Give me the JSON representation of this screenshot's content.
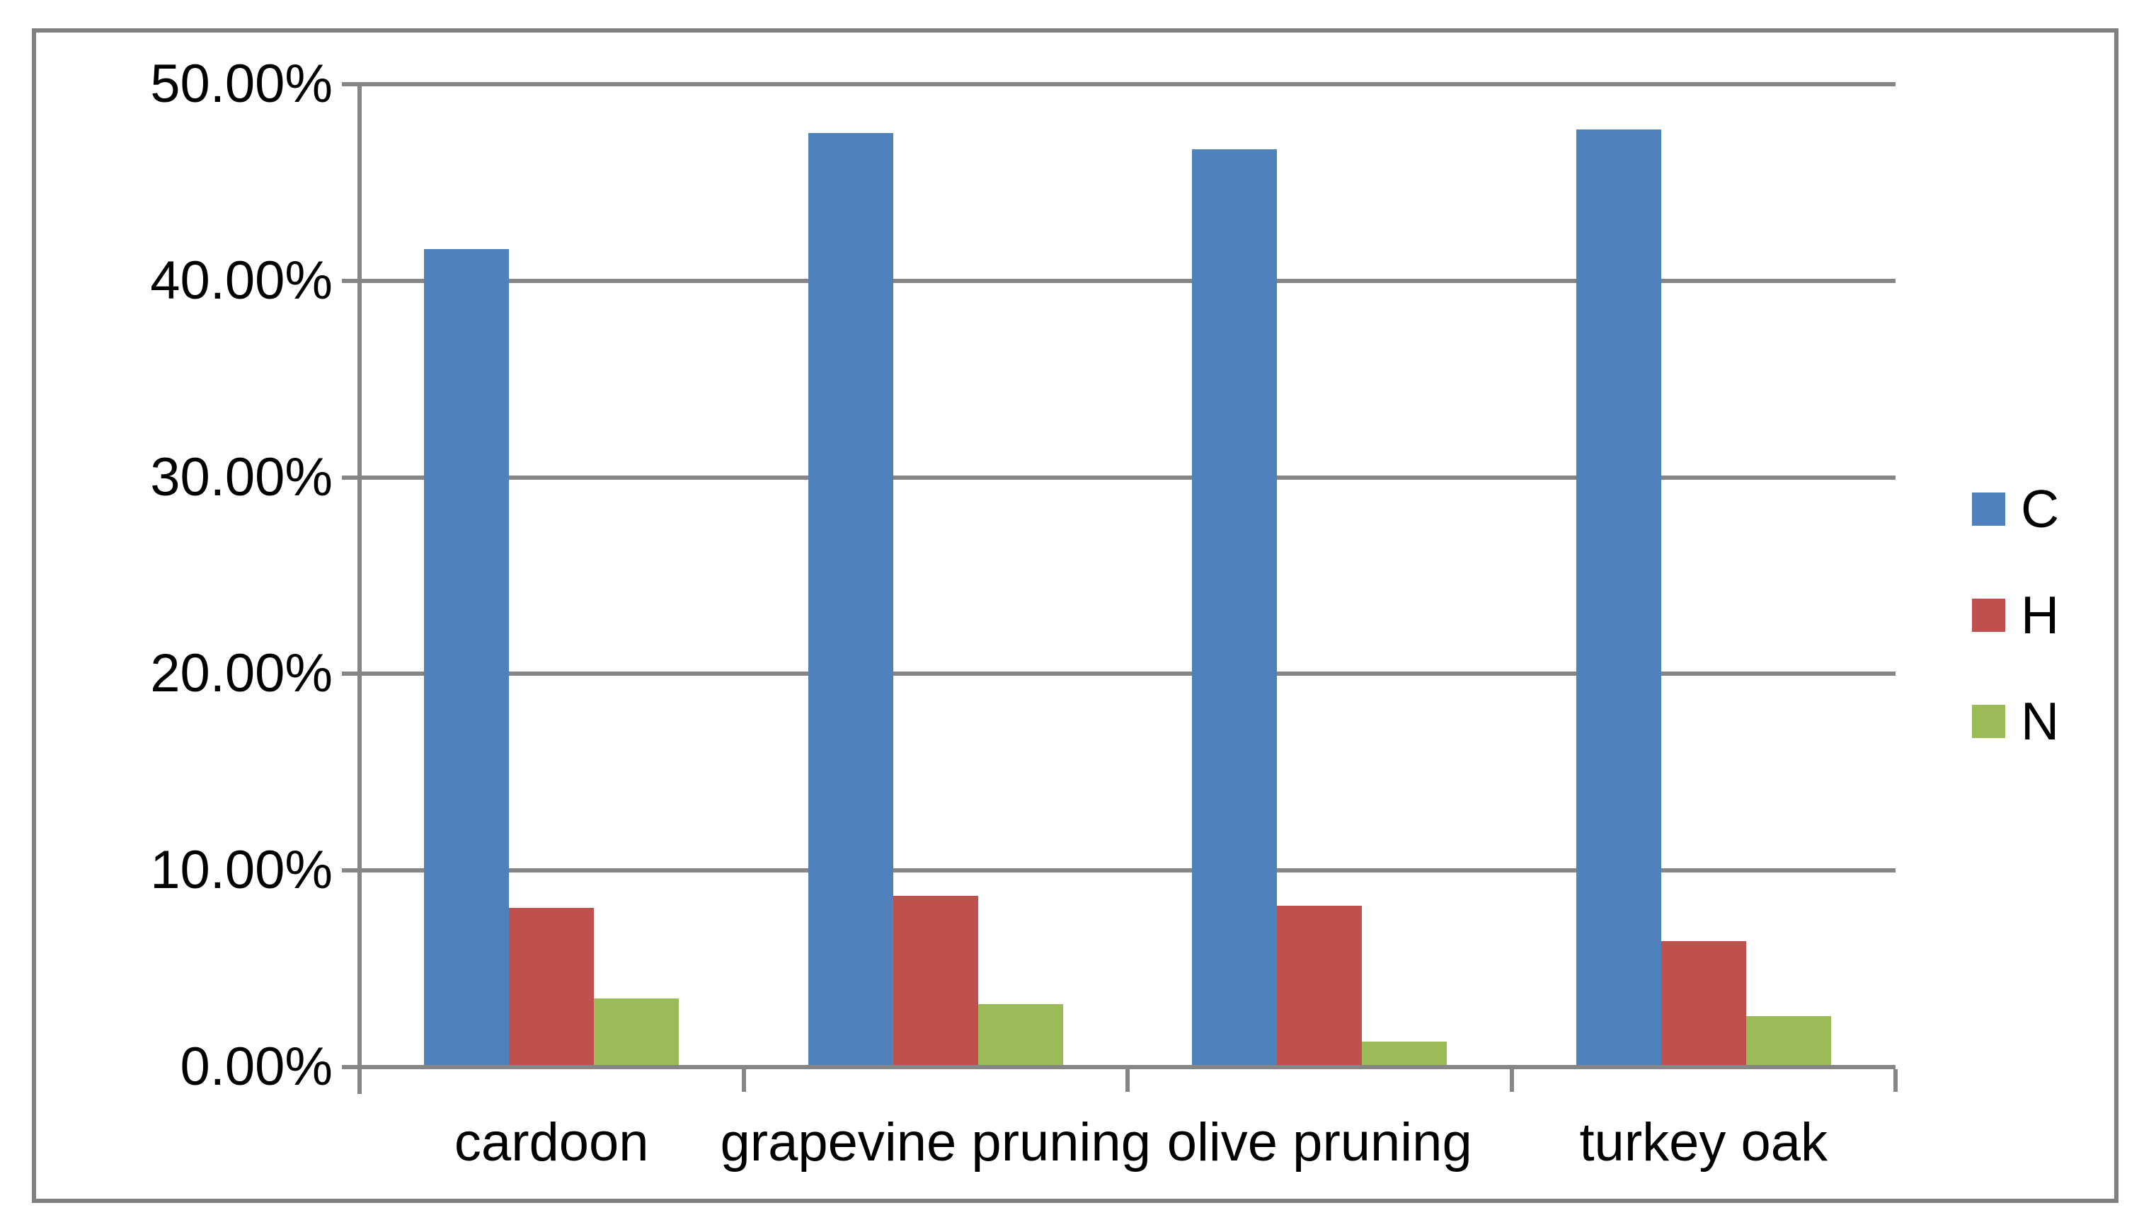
{
  "chart_data": {
    "type": "bar",
    "title": "",
    "xlabel": "",
    "ylabel": "",
    "categories": [
      "cardoon",
      "grapevine pruning",
      "olive pruning",
      "turkey oak"
    ],
    "series": [
      {
        "name": "C",
        "color": "#4F81BD",
        "values": [
          41.6,
          47.5,
          46.7,
          47.7
        ]
      },
      {
        "name": "H",
        "color": "#C0504D",
        "values": [
          8.1,
          8.7,
          8.2,
          6.4
        ]
      },
      {
        "name": "N",
        "color": "#9BBB59",
        "values": [
          3.5,
          3.2,
          1.3,
          2.6
        ]
      }
    ],
    "ylim": [
      0,
      50
    ],
    "ytick_step": 10,
    "yticks": [
      "0.00%",
      "10.00%",
      "20.00%",
      "30.00%",
      "40.00%",
      "50.00%"
    ],
    "grid": true,
    "legend_position": "right",
    "colors": {
      "gridline": "#868686",
      "axis": "#868686",
      "frame_border": "#808080",
      "background": "#ffffff",
      "text": "#000000"
    }
  }
}
